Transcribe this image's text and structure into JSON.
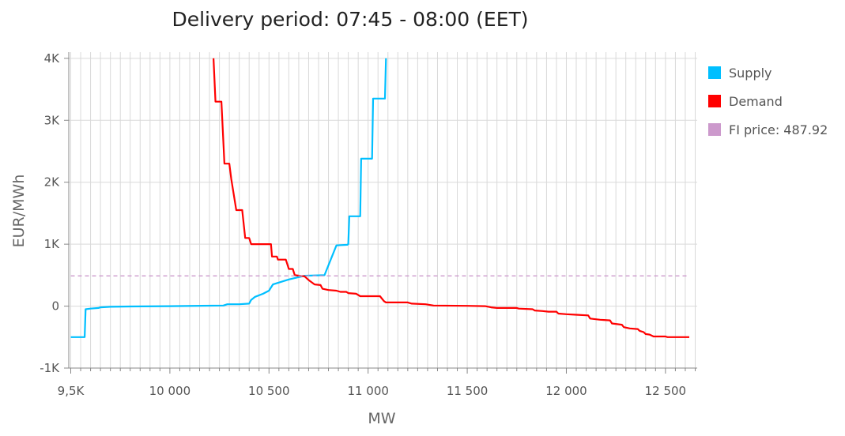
{
  "chart_data": {
    "type": "line",
    "title": "Delivery period: 07:45 - 08:00 (EET)",
    "xlabel": "MW",
    "ylabel": "EUR/MWh",
    "xlim": [
      9490,
      12660
    ],
    "ylim": [
      -1000,
      4100
    ],
    "x_ticks": [
      9500,
      10000,
      10500,
      11000,
      11500,
      12000,
      12500
    ],
    "x_tick_labels": [
      "9,5K",
      "10 000",
      "10 500",
      "11 000",
      "11 500",
      "12 000",
      "12 500"
    ],
    "y_ticks": [
      -1000,
      0,
      1000,
      2000,
      3000,
      4000
    ],
    "y_tick_labels": [
      "-1K",
      "0",
      "1K",
      "2K",
      "3K",
      "4K"
    ],
    "legend_position": "right",
    "grid": true,
    "series": [
      {
        "name": "Supply",
        "color": "#00bfff",
        "points": [
          [
            9500,
            -500
          ],
          [
            9570,
            -500
          ],
          [
            9575,
            -50
          ],
          [
            9600,
            -40
          ],
          [
            9640,
            -30
          ],
          [
            9650,
            -20
          ],
          [
            9700,
            -10
          ],
          [
            9800,
            -5
          ],
          [
            10000,
            0
          ],
          [
            10270,
            10
          ],
          [
            10290,
            30
          ],
          [
            10350,
            30
          ],
          [
            10400,
            40
          ],
          [
            10410,
            100
          ],
          [
            10430,
            150
          ],
          [
            10470,
            200
          ],
          [
            10500,
            250
          ],
          [
            10510,
            300
          ],
          [
            10520,
            350
          ],
          [
            10600,
            430
          ],
          [
            10680,
            490
          ],
          [
            10780,
            500
          ],
          [
            10840,
            980
          ],
          [
            10895,
            990
          ],
          [
            10900,
            1000
          ],
          [
            10905,
            1450
          ],
          [
            10960,
            1450
          ],
          [
            10965,
            2380
          ],
          [
            11020,
            2380
          ],
          [
            11025,
            3350
          ],
          [
            11085,
            3350
          ],
          [
            11090,
            4000
          ]
        ]
      },
      {
        "name": "Demand",
        "color": "#ff0000",
        "points": [
          [
            10220,
            4000
          ],
          [
            10230,
            3300
          ],
          [
            10260,
            3300
          ],
          [
            10275,
            2300
          ],
          [
            10300,
            2300
          ],
          [
            10310,
            2050
          ],
          [
            10335,
            1550
          ],
          [
            10365,
            1550
          ],
          [
            10380,
            1100
          ],
          [
            10400,
            1100
          ],
          [
            10410,
            1000
          ],
          [
            10510,
            1000
          ],
          [
            10515,
            800
          ],
          [
            10540,
            800
          ],
          [
            10545,
            750
          ],
          [
            10585,
            750
          ],
          [
            10600,
            600
          ],
          [
            10620,
            600
          ],
          [
            10630,
            500
          ],
          [
            10680,
            480
          ],
          [
            10700,
            420
          ],
          [
            10730,
            350
          ],
          [
            10760,
            340
          ],
          [
            10770,
            280
          ],
          [
            10800,
            260
          ],
          [
            10840,
            250
          ],
          [
            10860,
            230
          ],
          [
            10890,
            230
          ],
          [
            10900,
            210
          ],
          [
            10940,
            200
          ],
          [
            10960,
            160
          ],
          [
            11060,
            160
          ],
          [
            11080,
            80
          ],
          [
            11090,
            60
          ],
          [
            11200,
            60
          ],
          [
            11220,
            40
          ],
          [
            11290,
            30
          ],
          [
            11330,
            10
          ],
          [
            11500,
            5
          ],
          [
            11590,
            0
          ],
          [
            11620,
            -20
          ],
          [
            11650,
            -30
          ],
          [
            11750,
            -30
          ],
          [
            11760,
            -40
          ],
          [
            11830,
            -50
          ],
          [
            11840,
            -70
          ],
          [
            11880,
            -80
          ],
          [
            11910,
            -90
          ],
          [
            11950,
            -90
          ],
          [
            11960,
            -120
          ],
          [
            12000,
            -130
          ],
          [
            12050,
            -140
          ],
          [
            12110,
            -150
          ],
          [
            12120,
            -200
          ],
          [
            12170,
            -220
          ],
          [
            12220,
            -230
          ],
          [
            12230,
            -280
          ],
          [
            12280,
            -300
          ],
          [
            12290,
            -340
          ],
          [
            12320,
            -360
          ],
          [
            12360,
            -370
          ],
          [
            12370,
            -400
          ],
          [
            12390,
            -420
          ],
          [
            12400,
            -450
          ],
          [
            12420,
            -460
          ],
          [
            12440,
            -490
          ],
          [
            12500,
            -490
          ],
          [
            12510,
            -500
          ],
          [
            12620,
            -500
          ]
        ]
      },
      {
        "name": "FI price: 487.92",
        "color": "#cc99cc",
        "dashed": true,
        "points": [
          [
            9500,
            487.92
          ],
          [
            12620,
            487.92
          ]
        ]
      }
    ]
  }
}
